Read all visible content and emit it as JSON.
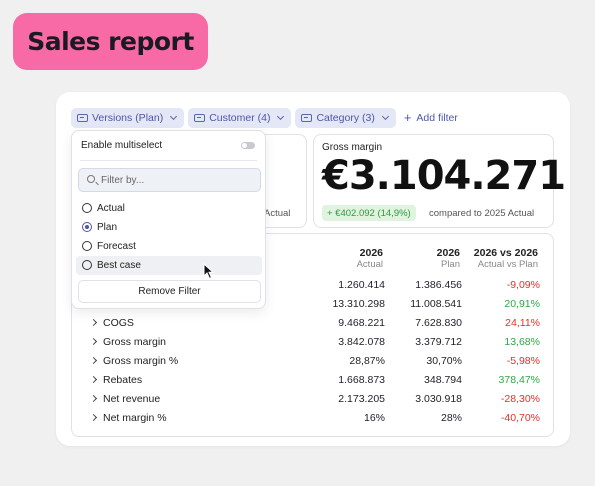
{
  "title": "Sales report",
  "filters": [
    {
      "label": "Versions (Plan)"
    },
    {
      "label": "Customer (4)"
    },
    {
      "label": "Category (3)"
    }
  ],
  "add_filter": "Add filter",
  "kpi_left": {
    "compare_fragment": "Actual"
  },
  "kpi_right": {
    "label": "Gross margin",
    "value": "€3.104.271",
    "delta": "+ €402.092 (14,9%)",
    "compare": "compared to 2025 Actual"
  },
  "dropdown": {
    "multiselect_label": "Enable multiselect",
    "search_placeholder": "Filter by...",
    "options": [
      "Actual",
      "Plan",
      "Forecast",
      "Best case"
    ],
    "selected": "Plan",
    "remove_label": "Remove Filter"
  },
  "table": {
    "columns": [
      {
        "year": "2026",
        "sub": "Actual"
      },
      {
        "year": "2026",
        "sub": "Plan"
      },
      {
        "year": "2026 vs 2026",
        "sub": "Actual vs Plan"
      }
    ],
    "rows": [
      {
        "name": "",
        "actual": "1.260.414",
        "plan": "1.386.456",
        "diff": "-9,09%",
        "sign": "neg"
      },
      {
        "name": "",
        "actual": "13.310.298",
        "plan": "11.008.541",
        "diff": "20,91%",
        "sign": "pos"
      },
      {
        "name": "COGS",
        "actual": "9.468.221",
        "plan": "7.628.830",
        "diff": "24,11%",
        "sign": "neg"
      },
      {
        "name": "Gross margin",
        "actual": "3.842.078",
        "plan": "3.379.712",
        "diff": "13,68%",
        "sign": "pos"
      },
      {
        "name": "Gross margin %",
        "actual": "28,87%",
        "plan": "30,70%",
        "diff": "-5,98%",
        "sign": "neg"
      },
      {
        "name": "Rebates",
        "actual": "1.668.873",
        "plan": "348.794",
        "diff": "378,47%",
        "sign": "pos"
      },
      {
        "name": "Net revenue",
        "actual": "2.173.205",
        "plan": "3.030.918",
        "diff": "-28,30%",
        "sign": "neg"
      },
      {
        "name": "Net margin %",
        "actual": "16%",
        "plan": "28%",
        "diff": "-40,70%",
        "sign": "neg"
      }
    ]
  }
}
